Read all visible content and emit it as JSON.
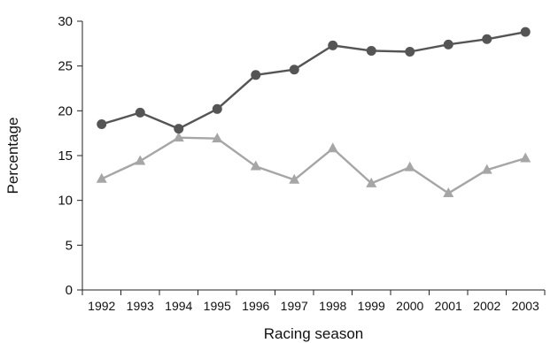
{
  "chart_data": {
    "type": "line",
    "title": "",
    "xlabel": "Racing season",
    "ylabel": "Percentage",
    "ylim": [
      0,
      30
    ],
    "yticks": [
      0,
      5,
      10,
      15,
      20,
      25,
      30
    ],
    "categories": [
      "1992",
      "1993",
      "1994",
      "1995",
      "1996",
      "1997",
      "1998",
      "1999",
      "2000",
      "2001",
      "2002",
      "2003"
    ],
    "grid": false,
    "legend": "none",
    "series": [
      {
        "marker": "circle",
        "color": "#555555",
        "values": [
          18.5,
          19.8,
          18.0,
          20.2,
          24.0,
          24.6,
          27.3,
          26.7,
          26.6,
          27.4,
          28.0,
          28.8
        ]
      },
      {
        "marker": "triangle",
        "color": "#a6a6a6",
        "values": [
          12.4,
          14.4,
          17.0,
          16.9,
          13.8,
          12.3,
          15.8,
          11.9,
          13.7,
          10.8,
          13.4,
          14.7
        ]
      }
    ]
  }
}
